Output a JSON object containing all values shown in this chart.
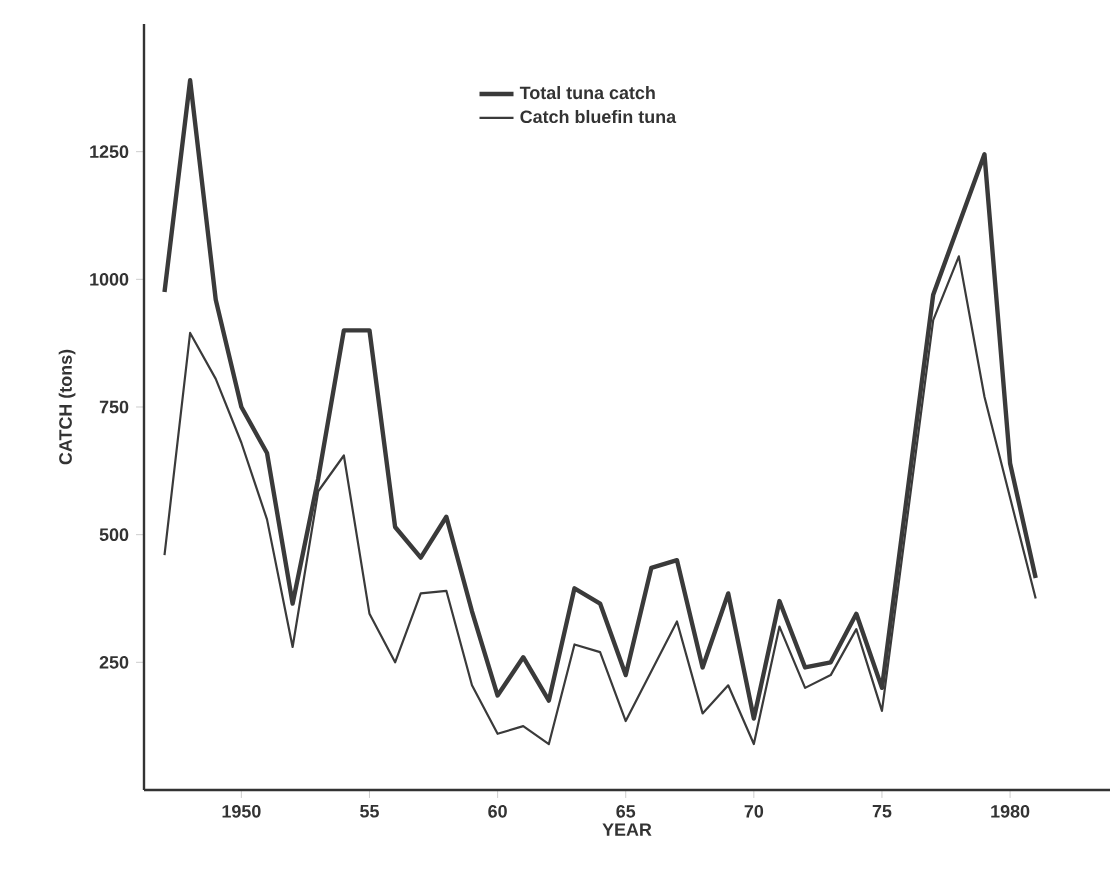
{
  "chart_data": {
    "type": "line",
    "xlabel": "YEAR",
    "ylabel": "CATCH (tons)",
    "series": [
      {
        "name": "Total tuna catch",
        "color": "#3a3a3a",
        "x": [
          1947,
          1948,
          1949,
          1950,
          1951,
          1952,
          1953,
          1954,
          1955,
          1956,
          1957,
          1958,
          1959,
          1960,
          1961,
          1962,
          1963,
          1964,
          1965,
          1966,
          1967,
          1968,
          1969,
          1970,
          1971,
          1972,
          1973,
          1974,
          1975,
          1977,
          1979,
          1980,
          1981
        ],
        "values": [
          975,
          1390,
          960,
          750,
          660,
          365,
          610,
          900,
          900,
          515,
          455,
          535,
          350,
          185,
          260,
          175,
          395,
          365,
          225,
          435,
          450,
          240,
          385,
          140,
          370,
          240,
          250,
          345,
          200,
          970,
          1245,
          640,
          415
        ]
      },
      {
        "name": "Catch bluefin tuna",
        "color": "#3a3a3a",
        "x": [
          1947,
          1948,
          1949,
          1950,
          1951,
          1952,
          1953,
          1954,
          1955,
          1956,
          1957,
          1958,
          1959,
          1960,
          1961,
          1962,
          1963,
          1964,
          1965,
          1967,
          1968,
          1969,
          1970,
          1971,
          1972,
          1973,
          1974,
          1975,
          1977,
          1978,
          1979,
          1981
        ],
        "values": [
          460,
          895,
          805,
          680,
          530,
          280,
          585,
          655,
          345,
          250,
          385,
          390,
          205,
          110,
          125,
          90,
          285,
          270,
          135,
          330,
          150,
          205,
          90,
          320,
          200,
          225,
          315,
          155,
          920,
          1045,
          770,
          375
        ]
      }
    ],
    "xlim": [
      1946.2,
      1983.9
    ],
    "ylim": [
      0,
      1500
    ],
    "xticks": [
      1950,
      {
        "value": 1955,
        "label": "55"
      },
      {
        "value": 1960,
        "label": "60"
      },
      {
        "value": 1965,
        "label": "65"
      },
      {
        "value": 1970,
        "label": "70"
      },
      {
        "value": 1975,
        "label": "75"
      },
      1980
    ],
    "yticks": [
      250,
      500,
      750,
      1000,
      1250
    ],
    "grid": false,
    "legend": "top",
    "marker": "none",
    "line_style": "solid"
  }
}
